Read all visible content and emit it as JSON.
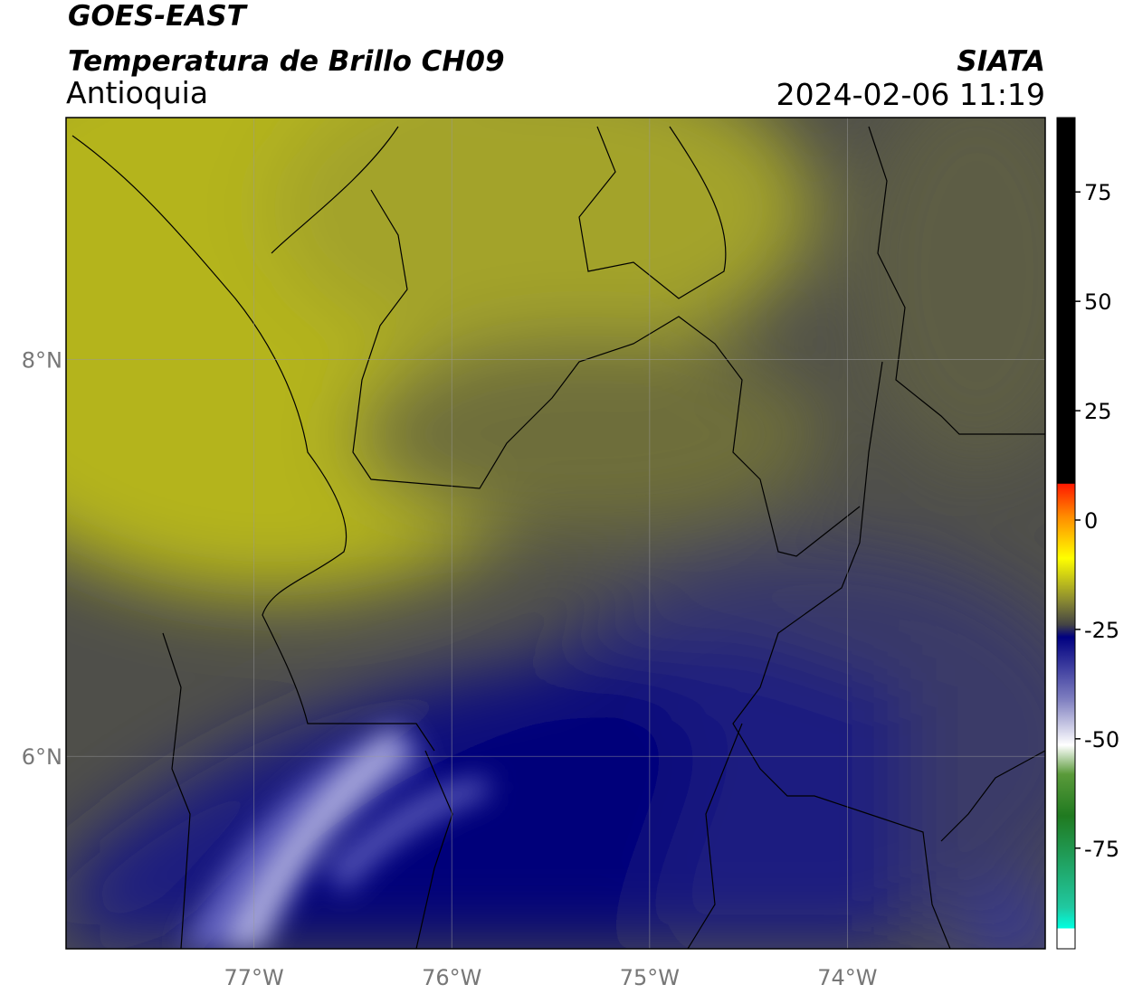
{
  "header": {
    "satellite": "GOES-EAST",
    "product": "Temperatura de Brillo CH09",
    "source": "SIATA",
    "region": "Antioquia",
    "datetime": "2024-02-06 11:19"
  },
  "map": {
    "xlim": [
      -77.95,
      -73.0
    ],
    "ylim": [
      5.03,
      9.22
    ],
    "xticks": [
      {
        "value": -77,
        "label": "77°W"
      },
      {
        "value": -76,
        "label": "76°W"
      },
      {
        "value": -75,
        "label": "75°W"
      },
      {
        "value": -74,
        "label": "74°W"
      }
    ],
    "yticks": [
      {
        "value": 6,
        "label": "6°N"
      },
      {
        "value": 8,
        "label": "8°N"
      }
    ],
    "grid": true
  },
  "colorbar": {
    "clim": [
      -98,
      92
    ],
    "ticks": [
      -75,
      -50,
      -25,
      0,
      25,
      50,
      75
    ]
  }
}
